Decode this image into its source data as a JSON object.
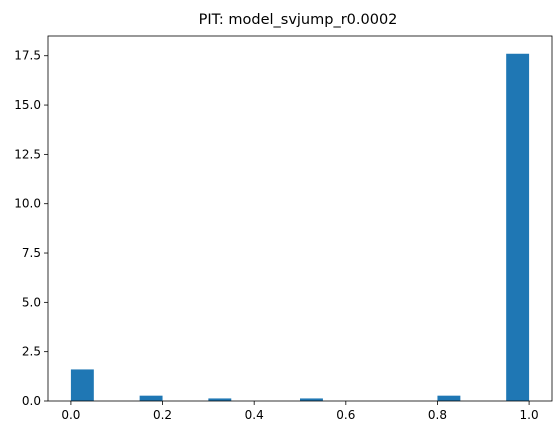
{
  "chart_data": {
    "type": "bar",
    "title": "PIT: model_svjump_r0.0002",
    "xlabel": "",
    "ylabel": "",
    "xlim": [
      -0.05,
      1.05
    ],
    "ylim": [
      0,
      18.5
    ],
    "x_ticks": [
      0.0,
      0.2,
      0.4,
      0.6,
      0.8,
      1.0
    ],
    "x_tick_labels": [
      "0.0",
      "0.2",
      "0.4",
      "0.6",
      "0.8",
      "1.0"
    ],
    "y_ticks": [
      0.0,
      2.5,
      5.0,
      7.5,
      10.0,
      12.5,
      15.0,
      17.5
    ],
    "y_tick_labels": [
      "0.0",
      "2.5",
      "5.0",
      "7.5",
      "10.0",
      "12.5",
      "15.0",
      "17.5"
    ],
    "bin_edges": [
      0.0,
      0.05,
      0.1,
      0.15,
      0.2,
      0.25,
      0.3,
      0.35,
      0.4,
      0.45,
      0.5,
      0.55,
      0.6,
      0.65,
      0.7,
      0.75,
      0.8,
      0.85,
      0.9,
      0.95,
      1.0
    ],
    "values": [
      1.6,
      0,
      0,
      0.27,
      0,
      0,
      0.13,
      0,
      0,
      0,
      0.13,
      0,
      0,
      0,
      0,
      0,
      0.27,
      0,
      0,
      17.6
    ],
    "bar_color": "#1f77b4",
    "grid": false,
    "legend": "none"
  }
}
